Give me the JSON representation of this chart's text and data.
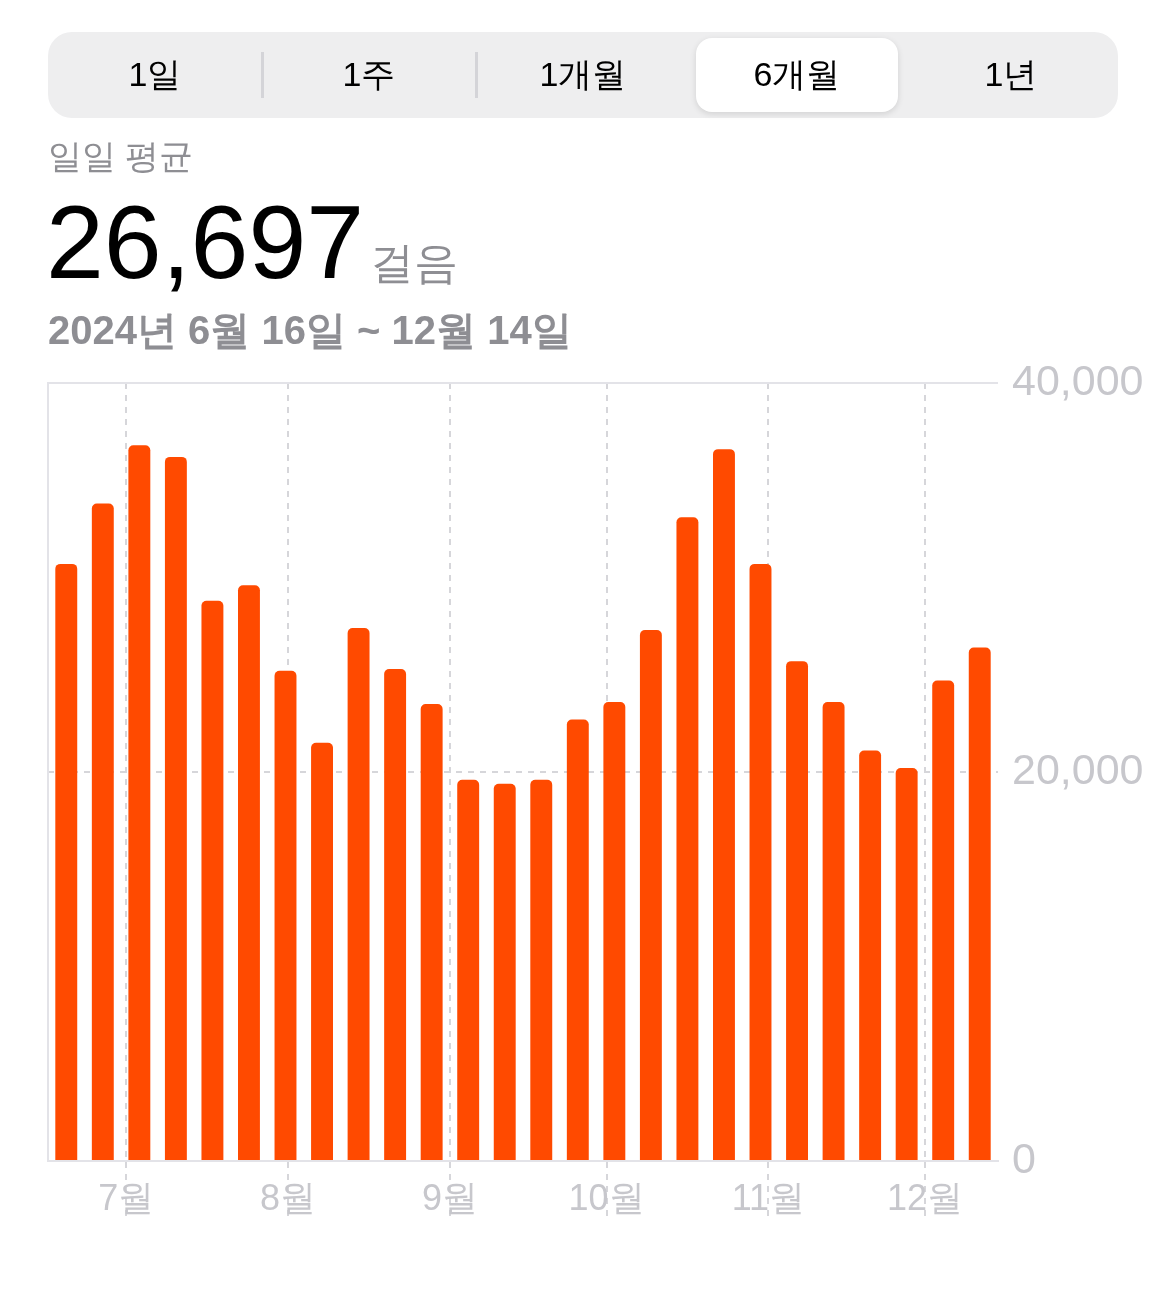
{
  "chart_data": {
    "type": "bar",
    "title": "일일 평균",
    "subtitle": "2024년 6월 16일 ~ 12월 14일",
    "annotations": [
      "1일",
      "1주",
      "1개월",
      "6개월",
      "1년",
      "26,697",
      "걸음"
    ],
    "x": [
      "2024-06-19T12:00",
      "2024-06-26T12:00",
      "2024-07-03T12:00",
      "2024-07-10T12:00",
      "2024-07-17T12:00",
      "2024-07-24T12:00",
      "2024-07-31T12:00",
      "2024-08-07T12:00",
      "2024-08-14T12:00",
      "2024-08-21T12:00",
      "2024-08-28T12:00",
      "2024-09-04T12:00",
      "2024-09-11T12:00",
      "2024-09-18T12:00",
      "2024-09-25T12:00",
      "2024-10-02T12:00",
      "2024-10-09T12:00",
      "2024-10-16T12:00",
      "2024-10-23T12:00",
      "2024-10-30T12:00",
      "2024-11-06T12:00",
      "2024-11-13T12:00",
      "2024-11-20T12:00",
      "2024-11-27T12:00",
      "2024-12-04T12:00",
      "2024-12-11T12:00"
    ],
    "values": [
      30700,
      33800,
      36800,
      36200,
      28800,
      29600,
      25200,
      21500,
      27400,
      25300,
      23500,
      19600,
      19400,
      19600,
      22700,
      23600,
      27300,
      33100,
      36600,
      30700,
      25700,
      23600,
      21100,
      20200,
      24700,
      26400
    ],
    "color": "#ff4a00",
    "xlim": [
      "2024-06-16",
      "2024-12-15"
    ],
    "xticks": [
      {
        "value": "2024-07-01",
        "label": "7월"
      },
      {
        "value": "2024-08-01",
        "label": "8월"
      },
      {
        "value": "2024-09-01",
        "label": "9월"
      },
      {
        "value": "2024-10-01",
        "label": "10월"
      },
      {
        "value": "2024-11-01",
        "label": "11월"
      },
      {
        "value": "2024-12-01",
        "label": "12월"
      }
    ],
    "ylim": [
      0,
      40000
    ],
    "yticks": [
      0,
      {
        "value": 20000,
        "label": "20,000"
      },
      {
        "value": 40000,
        "label": "40,000"
      }
    ],
    "grid": true
  }
}
